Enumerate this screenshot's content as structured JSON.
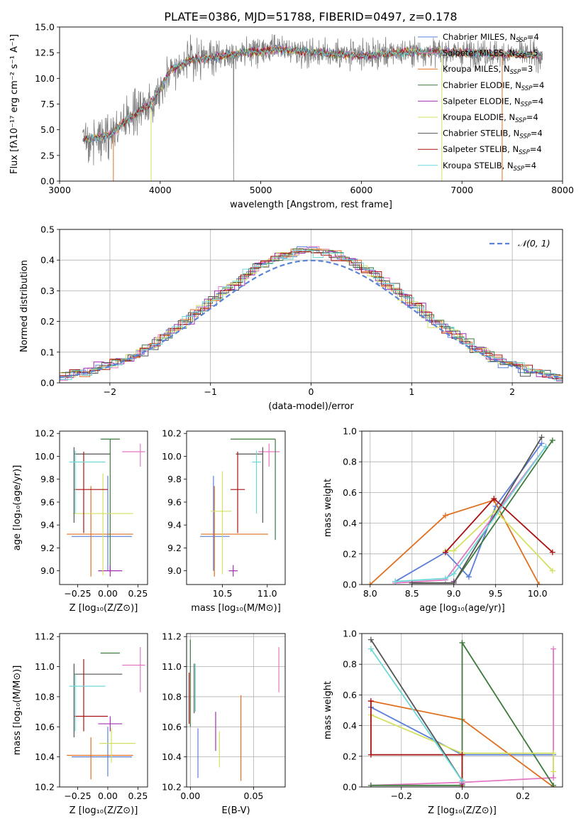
{
  "figure_title": "PLATE=0386, MJD=51788, FIBERID=0497, z=0.178",
  "colors": {
    "data_spectrum": "#808080",
    "chabrier_miles": "#5b7fd9",
    "salpeter_miles": "#e377c2",
    "kroupa_miles": "#e07020",
    "chabrier_elodie": "#3d7a3d",
    "salpeter_elodie": "#a030b0",
    "kroupa_elodie": "#d4e060",
    "chabrier_stelib": "#555555",
    "salpeter_stelib": "#aa1111",
    "kroupa_stelib": "#6fd8d8",
    "gaussian": "#5b84d6"
  },
  "chart_data": [
    {
      "id": "spectrum",
      "type": "line",
      "title": "PLATE=0386, MJD=51788, FIBERID=0497, z=0.178",
      "xlabel": "wavelength [Angstrom, rest frame]",
      "ylabel": "Flux [fλ10⁻¹⁷ erg cm⁻² s⁻¹ A⁻¹]",
      "xlim": [
        3000,
        8000
      ],
      "ylim": [
        0,
        15
      ],
      "xticks": [
        "3000",
        "4000",
        "5000",
        "6000",
        "7000",
        "8000"
      ],
      "yticks": [
        "0.0",
        "2.5",
        "5.0",
        "7.5",
        "10.0",
        "12.5",
        "15.0"
      ],
      "grid": false,
      "legend_position": "top-right",
      "legend": [
        {
          "model": "Chabrier MILES",
          "nssp": "4"
        },
        {
          "model": "Salpeter MILES",
          "nssp": "5"
        },
        {
          "model": "Kroupa MILES",
          "nssp": "3"
        },
        {
          "model": "Chabrier ELODIE",
          "nssp": "4"
        },
        {
          "model": "Salpeter ELODIE",
          "nssp": "4"
        },
        {
          "model": "Kroupa ELODIE",
          "nssp": "4"
        },
        {
          "model": "Chabrier STELIB",
          "nssp": "4"
        },
        {
          "model": "Salpeter STELIB",
          "nssp": "4"
        },
        {
          "model": "Kroupa STELIB",
          "nssp": "4"
        }
      ],
      "nssp_prefix": "N",
      "nssp_sub": "SSP",
      "data_range": [
        3230,
        7800
      ],
      "continuum": [
        [
          3230,
          4.0
        ],
        [
          3500,
          4.5
        ],
        [
          3700,
          6.2
        ],
        [
          3900,
          7.5
        ],
        [
          4000,
          9.0
        ],
        [
          4100,
          10.8
        ],
        [
          4300,
          11.8
        ],
        [
          4500,
          12.0
        ],
        [
          4800,
          12.5
        ],
        [
          5200,
          12.8
        ],
        [
          5600,
          12.5
        ],
        [
          6000,
          12.2
        ],
        [
          6500,
          12.6
        ],
        [
          7000,
          12.5
        ],
        [
          7500,
          12.4
        ],
        [
          7800,
          12.2
        ]
      ]
    },
    {
      "id": "residuals",
      "type": "histogram",
      "xlabel": "(data-model)/error",
      "ylabel": "Normed distribution",
      "xlim": [
        -2.5,
        2.5
      ],
      "ylim": [
        0,
        0.5
      ],
      "xticks": [
        "−2",
        "−1",
        "0",
        "1",
        "2"
      ],
      "yticks": [
        "0.0",
        "0.1",
        "0.2",
        "0.3",
        "0.4",
        "0.5"
      ],
      "grid": true,
      "legend_position": "top-right",
      "legend": [
        "𝒩(0, 1)"
      ],
      "bin_width": 0.1,
      "series_note": "one step histogram per model (9 models)"
    },
    {
      "id": "age_vs_Z",
      "type": "scatter",
      "xlabel": "Z [log₁₀(Z/Z⊙)]",
      "ylabel": "age  [log₁₀(age/yr)]",
      "xlim": [
        -0.4,
        0.33
      ],
      "ylim": [
        8.88,
        10.22
      ],
      "xticks": [
        "−0.25",
        "0.00",
        "0.25"
      ],
      "yticks": [
        "9.0",
        "9.2",
        "9.4",
        "9.6",
        "9.8",
        "10.0",
        "10.2"
      ],
      "points": [
        {
          "model": "chabrier_miles",
          "x": 0.0,
          "xerr": [
            0.3,
            0.2
          ],
          "y": 9.3,
          "yerr": [
            0.3,
            0.53
          ]
        },
        {
          "model": "salpeter_miles",
          "x": 0.27,
          "xerr": [
            0.15,
            0.04
          ],
          "y": 10.04,
          "yerr": [
            0.13,
            0.07
          ]
        },
        {
          "model": "kroupa_miles",
          "x": -0.14,
          "xerr": [
            0.2,
            0.35
          ],
          "y": 9.32,
          "yerr": [
            0.37,
            0.42
          ]
        },
        {
          "model": "chabrier_elodie",
          "x": 0.02,
          "xerr": [
            0.08,
            0.08
          ],
          "y": 10.15,
          "yerr": [
            1.15,
            0.0
          ]
        },
        {
          "model": "salpeter_elodie",
          "x": 0.02,
          "xerr": [
            0.1,
            0.1
          ],
          "y": 9.0,
          "yerr": [
            0.05,
            0.05
          ]
        },
        {
          "model": "kroupa_elodie",
          "x": -0.04,
          "xerr": [
            0.25,
            0.25
          ],
          "y": 9.5,
          "yerr": [
            0.54,
            0.35
          ]
        },
        {
          "model": "chabrier_stelib",
          "x": -0.28,
          "xerr": [
            0.0,
            0.3
          ],
          "y": 10.02,
          "yerr": [
            0.6,
            0.06
          ]
        },
        {
          "model": "salpeter_stelib",
          "x": -0.2,
          "xerr": [
            0.08,
            0.2
          ],
          "y": 9.71,
          "yerr": [
            0.38,
            0.33
          ]
        },
        {
          "model": "kroupa_stelib",
          "x": -0.27,
          "xerr": [
            0.05,
            0.25
          ],
          "y": 9.95,
          "yerr": [
            0.45,
            0.1
          ]
        }
      ]
    },
    {
      "id": "age_vs_mass",
      "type": "scatter",
      "xlabel": "mass [log₁₀(M/M⊙)]",
      "ylabel": "",
      "xlim": [
        10.1,
        11.2
      ],
      "ylim": [
        8.88,
        10.22
      ],
      "xticks": [
        "10.5",
        "11.0"
      ],
      "yticks": [
        "9.0",
        "9.2",
        "9.4",
        "9.6",
        "9.8",
        "10.0",
        "10.2"
      ],
      "points": [
        {
          "model": "chabrier_miles",
          "x": 10.4,
          "xerr": [
            0.15,
            0.18
          ],
          "y": 9.3,
          "yerr": [
            0.3,
            0.53
          ]
        },
        {
          "model": "salpeter_miles",
          "x": 11.02,
          "xerr": [
            0.12,
            0.12
          ],
          "y": 10.04,
          "yerr": [
            0.13,
            0.07
          ]
        },
        {
          "model": "kroupa_miles",
          "x": 10.41,
          "xerr": [
            0.15,
            0.6
          ],
          "y": 9.32,
          "yerr": [
            0.37,
            0.42
          ]
        },
        {
          "model": "chabrier_elodie",
          "x": 11.09,
          "xerr": [
            0.5,
            0.0
          ],
          "y": 10.15,
          "yerr": [
            0.88,
            0.0
          ]
        },
        {
          "model": "salpeter_elodie",
          "x": 10.62,
          "xerr": [
            0.05,
            0.05
          ],
          "y": 9.0,
          "yerr": [
            0.05,
            0.05
          ]
        },
        {
          "model": "kroupa_elodie",
          "x": 10.5,
          "xerr": [
            0.13,
            0.1
          ],
          "y": 9.52,
          "yerr": [
            0.55,
            0.35
          ]
        },
        {
          "model": "chabrier_stelib",
          "x": 10.95,
          "xerr": [
            0.3,
            0.0
          ],
          "y": 10.02,
          "yerr": [
            0.6,
            0.06
          ]
        },
        {
          "model": "salpeter_stelib",
          "x": 10.67,
          "xerr": [
            0.08,
            0.08
          ],
          "y": 9.71,
          "yerr": [
            0.38,
            0.33
          ]
        },
        {
          "model": "kroupa_stelib",
          "x": 10.88,
          "xerr": [
            0.05,
            0.05
          ],
          "y": 9.95,
          "yerr": [
            0.45,
            0.1
          ]
        }
      ]
    },
    {
      "id": "weight_vs_age",
      "type": "line",
      "xlabel": "age  [log₁₀(age/yr)]",
      "ylabel": "mass weight",
      "xlim": [
        7.9,
        10.3
      ],
      "ylim": [
        0,
        1
      ],
      "xticks": [
        "8.0",
        "8.5",
        "9.0",
        "9.5",
        "10.0"
      ],
      "yticks": [
        "0.0",
        "0.2",
        "0.4",
        "0.6",
        "0.8",
        "1.0"
      ],
      "grid": true,
      "series": [
        {
          "model": "chabrier_miles",
          "x": [
            8.3,
            8.9,
            9.18,
            9.5,
            10.05
          ],
          "y": [
            0.02,
            0.21,
            0.05,
            0.51,
            0.92
          ]
        },
        {
          "model": "salpeter_miles",
          "x": [
            8.3,
            8.9,
            10.1
          ],
          "y": [
            0.01,
            0.03,
            0.9
          ]
        },
        {
          "model": "kroupa_miles",
          "x": [
            8.0,
            8.9,
            9.48,
            10.02
          ],
          "y": [
            0.0,
            0.45,
            0.55,
            0.0
          ]
        },
        {
          "model": "chabrier_elodie",
          "x": [
            8.5,
            9.0,
            10.18
          ],
          "y": [
            0.01,
            0.01,
            0.94
          ]
        },
        {
          "model": "salpeter_elodie",
          "x": [
            9.0
          ],
          "y": [
            0.02
          ]
        },
        {
          "model": "kroupa_elodie",
          "x": [
            8.9,
            9.0,
            9.5,
            10.18
          ],
          "y": [
            0.22,
            0.22,
            0.48,
            0.09
          ]
        },
        {
          "model": "chabrier_stelib",
          "x": [
            8.5,
            9.0,
            10.05
          ],
          "y": [
            0.01,
            0.01,
            0.96
          ]
        },
        {
          "model": "salpeter_stelib",
          "x": [
            8.9,
            9.48,
            10.18
          ],
          "y": [
            0.21,
            0.56,
            0.21
          ]
        },
        {
          "model": "kroupa_stelib",
          "x": [
            8.3,
            8.9,
            9.0,
            10.1
          ],
          "y": [
            0.02,
            0.04,
            0.07,
            0.9
          ]
        }
      ]
    },
    {
      "id": "mass_vs_Z",
      "type": "scatter",
      "xlabel": "Z [log₁₀(Z/Z⊙)]",
      "ylabel": "mass [log₁₀(M/M⊙)]",
      "xlim": [
        -0.4,
        0.33
      ],
      "ylim": [
        10.2,
        11.22
      ],
      "xticks": [
        "−0.25",
        "0.00",
        "0.25"
      ],
      "yticks": [
        "10.2",
        "10.4",
        "10.6",
        "10.8",
        "11.0",
        "11.2"
      ],
      "points": [
        {
          "model": "chabrier_miles",
          "x": 0.0,
          "xerr": [
            0.3,
            0.2
          ],
          "y": 10.4,
          "yerr": [
            0.13,
            0.2
          ]
        },
        {
          "model": "salpeter_miles",
          "x": 0.27,
          "xerr": [
            0.15,
            0.04
          ],
          "y": 11.01,
          "yerr": [
            0.18,
            0.12
          ]
        },
        {
          "model": "kroupa_miles",
          "x": -0.14,
          "xerr": [
            0.2,
            0.35
          ],
          "y": 10.41,
          "yerr": [
            0.16,
            0.12
          ]
        },
        {
          "model": "chabrier_elodie",
          "x": 0.02,
          "xerr": [
            0.08,
            0.08
          ],
          "y": 11.09,
          "yerr": [
            0.0,
            0.0
          ]
        },
        {
          "model": "salpeter_elodie",
          "x": 0.02,
          "xerr": [
            0.1,
            0.1
          ],
          "y": 10.62,
          "yerr": [
            0.05,
            0.05
          ]
        },
        {
          "model": "kroupa_elodie",
          "x": 0.03,
          "xerr": [
            0.1,
            0.2
          ],
          "y": 10.49,
          "yerr": [
            0.13,
            0.1
          ]
        },
        {
          "model": "chabrier_stelib",
          "x": -0.28,
          "xerr": [
            0.0,
            0.4
          ],
          "y": 10.95,
          "yerr": [
            0.42,
            0.07
          ]
        },
        {
          "model": "salpeter_stelib",
          "x": -0.2,
          "xerr": [
            0.08,
            0.2
          ],
          "y": 10.67,
          "yerr": [
            0.1,
            0.38
          ]
        },
        {
          "model": "kroupa_stelib",
          "x": -0.27,
          "xerr": [
            0.05,
            0.25
          ],
          "y": 10.87,
          "yerr": [
            0.3,
            0.08
          ]
        }
      ]
    },
    {
      "id": "mass_vs_ebv",
      "type": "scatter",
      "xlabel": "E(B-V)",
      "ylabel": "",
      "xlim": [
        -0.003,
        0.075
      ],
      "ylim": [
        10.2,
        11.22
      ],
      "xticks": [
        "0.00",
        "0.05"
      ],
      "yticks": [
        "10.2",
        "10.4",
        "10.6",
        "10.8",
        "11.0",
        "11.2"
      ],
      "grid": true,
      "points": [
        {
          "model": "chabrier_miles",
          "x": 0.006,
          "xerr": [
            0,
            0
          ],
          "y": 10.45,
          "yerr": [
            0.19,
            0.14
          ]
        },
        {
          "model": "salpeter_miles",
          "x": 0.07,
          "xerr": [
            0,
            0
          ],
          "y": 11.0,
          "yerr": [
            0.17,
            0.13
          ]
        },
        {
          "model": "kroupa_miles",
          "x": 0.04,
          "xerr": [
            0,
            0
          ],
          "y": 10.5,
          "yerr": [
            0.26,
            0.31
          ]
        },
        {
          "model": "chabrier_elodie",
          "x": 0.0,
          "xerr": [
            0,
            0
          ],
          "y": 10.9,
          "yerr": [
            0.3,
            0.28
          ]
        },
        {
          "model": "salpeter_elodie",
          "x": 0.02,
          "xerr": [
            0,
            0
          ],
          "y": 10.57,
          "yerr": [
            0.13,
            0.13
          ]
        },
        {
          "model": "kroupa_elodie",
          "x": 0.023,
          "xerr": [
            0,
            0
          ],
          "y": 10.47,
          "yerr": [
            0.14,
            0.1
          ]
        },
        {
          "model": "chabrier_stelib",
          "x": 0.003,
          "xerr": [
            0,
            0
          ],
          "y": 10.85,
          "yerr": [
            0.16,
            0.17
          ]
        },
        {
          "model": "salpeter_stelib",
          "x": -0.001,
          "xerr": [
            0,
            0
          ],
          "y": 10.67,
          "yerr": [
            0.05,
            0.29
          ]
        },
        {
          "model": "kroupa_stelib",
          "x": 0.004,
          "xerr": [
            0,
            0
          ],
          "y": 10.82,
          "yerr": [
            0.12,
            0.2
          ]
        }
      ]
    },
    {
      "id": "weight_vs_Z",
      "type": "line",
      "xlabel": "Z [log₁₀(Z/Z⊙)]",
      "ylabel": "mass weight",
      "xlim": [
        -0.33,
        0.33
      ],
      "ylim": [
        0,
        1
      ],
      "xticks": [
        "−0.2",
        "0.0",
        "0.2"
      ],
      "yticks": [
        "0.0",
        "0.2",
        "0.4",
        "0.6",
        "0.8",
        "1.0"
      ],
      "grid": true,
      "series": [
        {
          "model": "chabrier_miles",
          "x": [
            -0.3,
            0.0,
            0.3
          ],
          "y": [
            0.52,
            0.21,
            0.21
          ]
        },
        {
          "model": "salpeter_miles",
          "x": [
            -0.3,
            0.0,
            0.3,
            0.3
          ],
          "y": [
            0.01,
            0.03,
            0.06,
            0.9
          ]
        },
        {
          "model": "kroupa_miles",
          "x": [
            -0.3,
            0.0,
            0.3
          ],
          "y": [
            0.56,
            0.44,
            0.0
          ]
        },
        {
          "model": "chabrier_elodie",
          "x": [
            -0.3,
            0.0,
            0.0,
            0.3
          ],
          "y": [
            0.01,
            0.01,
            0.94,
            0.01
          ]
        },
        {
          "model": "salpeter_elodie",
          "x": [
            0.0
          ],
          "y": [
            0.02
          ]
        },
        {
          "model": "kroupa_elodie",
          "x": [
            -0.3,
            0.0,
            0.3,
            0.3
          ],
          "y": [
            0.47,
            0.22,
            0.22,
            0.1
          ]
        },
        {
          "model": "chabrier_stelib",
          "x": [
            -0.3,
            0.0
          ],
          "y": [
            0.96,
            0.04
          ]
        },
        {
          "model": "salpeter_stelib",
          "x": [
            -0.3,
            -0.3,
            0.0,
            0.0
          ],
          "y": [
            0.56,
            0.21,
            0.21,
            0.0
          ]
        },
        {
          "model": "kroupa_stelib",
          "x": [
            -0.3,
            0.0
          ],
          "y": [
            0.9,
            0.04
          ]
        }
      ]
    }
  ]
}
